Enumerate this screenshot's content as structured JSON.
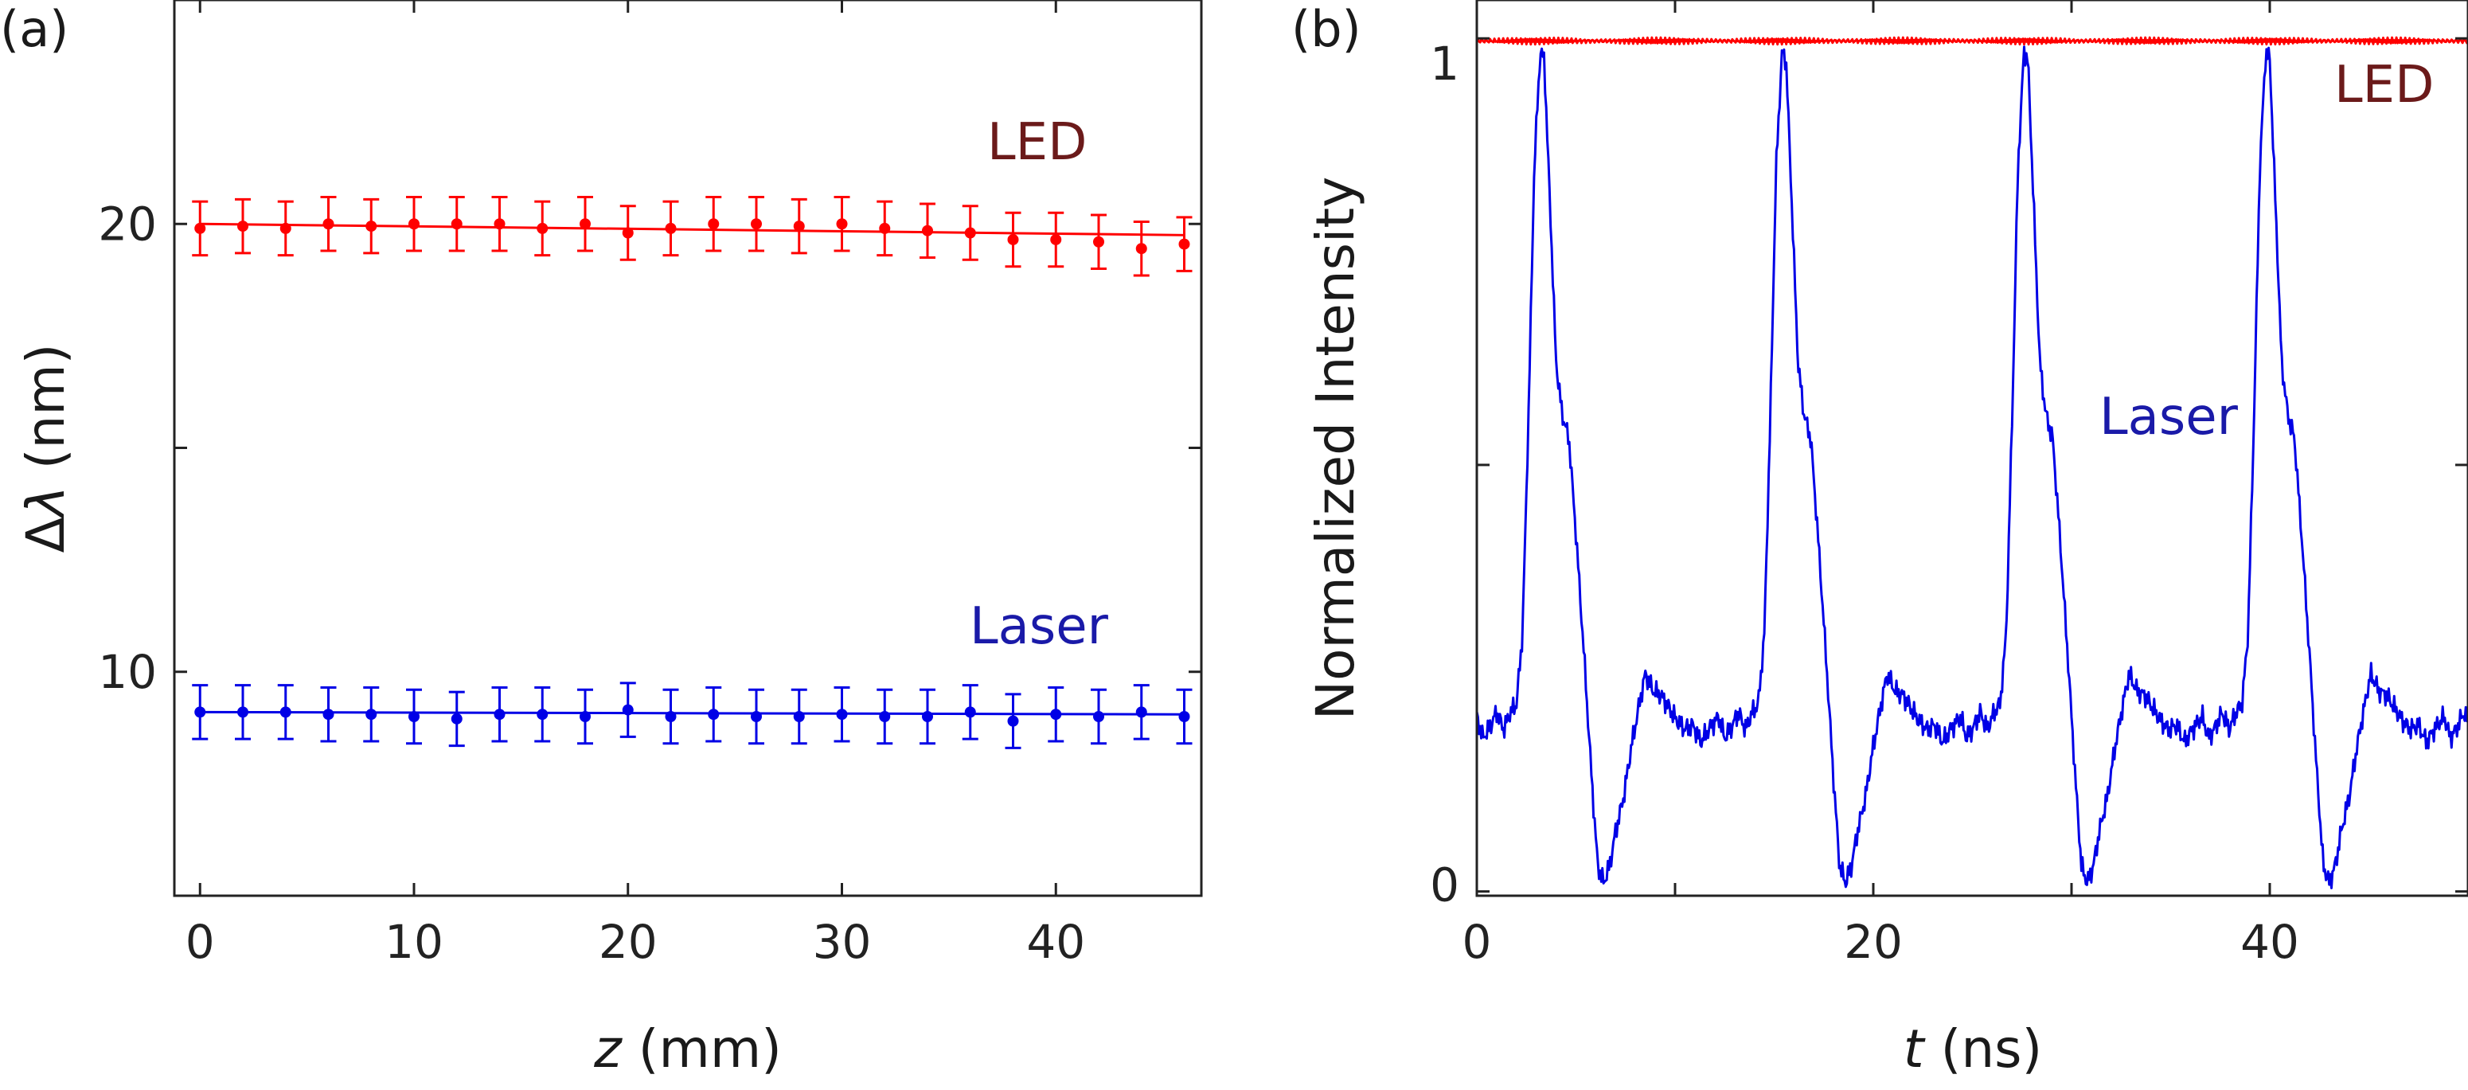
{
  "colors": {
    "led": "#ff0000",
    "laser": "#0000e6",
    "led_label": "#6b1a1a",
    "laser_label": "#1a1aa8",
    "axis": "#222222"
  },
  "chart_data": [
    {
      "panel_label": "(a)",
      "type": "scatter",
      "title": "",
      "xlabel_italic": "z",
      "xlabel_rest": " (mm)",
      "ylabel_prefix": "Δ",
      "ylabel_italic": "λ",
      "ylabel_rest": " (nm)",
      "xlim": [
        -1.2,
        46.8
      ],
      "ylim": [
        5,
        25
      ],
      "xticks": [
        0,
        10,
        20,
        30,
        40
      ],
      "yticks": [
        10,
        20
      ],
      "yticks_unlabeled": [
        15,
        25
      ],
      "series": [
        {
          "name": "LED",
          "color": "#ff0000",
          "x": [
            0,
            2,
            4,
            6,
            8,
            10,
            12,
            14,
            16,
            18,
            20,
            22,
            24,
            26,
            28,
            30,
            32,
            34,
            36,
            38,
            40,
            42,
            44,
            46
          ],
          "y": [
            19.9,
            19.95,
            19.9,
            20.0,
            19.95,
            20.0,
            20.0,
            20.0,
            19.9,
            20.0,
            19.8,
            19.9,
            20.0,
            20.0,
            19.95,
            20.0,
            19.9,
            19.85,
            19.8,
            19.65,
            19.65,
            19.6,
            19.45,
            19.55
          ],
          "error": 0.6,
          "fit": [
            20.0,
            19.75
          ]
        },
        {
          "name": "Laser",
          "color": "#0000e6",
          "x": [
            0,
            2,
            4,
            6,
            8,
            10,
            12,
            14,
            16,
            18,
            20,
            22,
            24,
            26,
            28,
            30,
            32,
            34,
            36,
            38,
            40,
            42,
            44,
            46
          ],
          "y": [
            9.1,
            9.1,
            9.1,
            9.05,
            9.05,
            9.0,
            8.95,
            9.05,
            9.05,
            9.0,
            9.15,
            9.0,
            9.05,
            9.0,
            9.0,
            9.05,
            9.0,
            9.0,
            9.1,
            8.9,
            9.05,
            9.0,
            9.1,
            9.0
          ],
          "error": 0.6,
          "fit": [
            9.1,
            9.05
          ]
        }
      ],
      "annotations": [
        {
          "text": "LED",
          "color_key": "led_label"
        },
        {
          "text": "Laser",
          "color_key": "laser_label"
        }
      ]
    },
    {
      "panel_label": "(b)",
      "type": "line",
      "title": "",
      "xlabel_italic": "t",
      "xlabel_rest": " (ns)",
      "ylabel": "Normalized Intensity",
      "xlim": [
        0,
        50
      ],
      "ylim": [
        -0.005,
        1.045
      ],
      "xticks": [
        0,
        20,
        40
      ],
      "xticks_unlabeled": [
        10,
        30,
        50
      ],
      "yticks": [
        0,
        1
      ],
      "yticks_unlabeled": [
        0.5
      ],
      "series": [
        {
          "name": "LED",
          "color": "#ff0000",
          "level": 1.0,
          "noise": 0.004
        },
        {
          "name": "Laser",
          "color": "#0000e6",
          "period": 12.2,
          "pulse_shape": [
            [
              0.0,
              0.205
            ],
            [
              0.3,
              0.18
            ],
            [
              0.6,
              0.19
            ],
            [
              1.0,
              0.21
            ],
            [
              1.35,
              0.19
            ],
            [
              1.7,
              0.21
            ],
            [
              2.0,
              0.22
            ],
            [
              2.3,
              0.3
            ],
            [
              2.6,
              0.55
            ],
            [
              2.9,
              0.85
            ],
            [
              3.2,
              0.985
            ],
            [
              3.4,
              0.975
            ],
            [
              3.7,
              0.8
            ],
            [
              4.0,
              0.62
            ],
            [
              4.3,
              0.56
            ],
            [
              4.65,
              0.53
            ],
            [
              5.0,
              0.42
            ],
            [
              5.4,
              0.28
            ],
            [
              5.8,
              0.13
            ],
            [
              6.1,
              0.03
            ],
            [
              6.4,
              0.01
            ],
            [
              6.7,
              0.03
            ],
            [
              7.0,
              0.07
            ],
            [
              7.4,
              0.11
            ],
            [
              7.8,
              0.17
            ],
            [
              8.2,
              0.22
            ],
            [
              8.5,
              0.255
            ],
            [
              8.9,
              0.235
            ],
            [
              9.3,
              0.23
            ],
            [
              9.7,
              0.215
            ],
            [
              10.1,
              0.2
            ],
            [
              10.5,
              0.19
            ],
            [
              10.9,
              0.195
            ],
            [
              11.3,
              0.175
            ],
            [
              11.7,
              0.19
            ],
            [
              12.2,
              0.205
            ]
          ]
        }
      ],
      "annotations": [
        {
          "text": "LED",
          "color_key": "led_label"
        },
        {
          "text": "Laser",
          "color_key": "laser_label"
        }
      ]
    }
  ]
}
